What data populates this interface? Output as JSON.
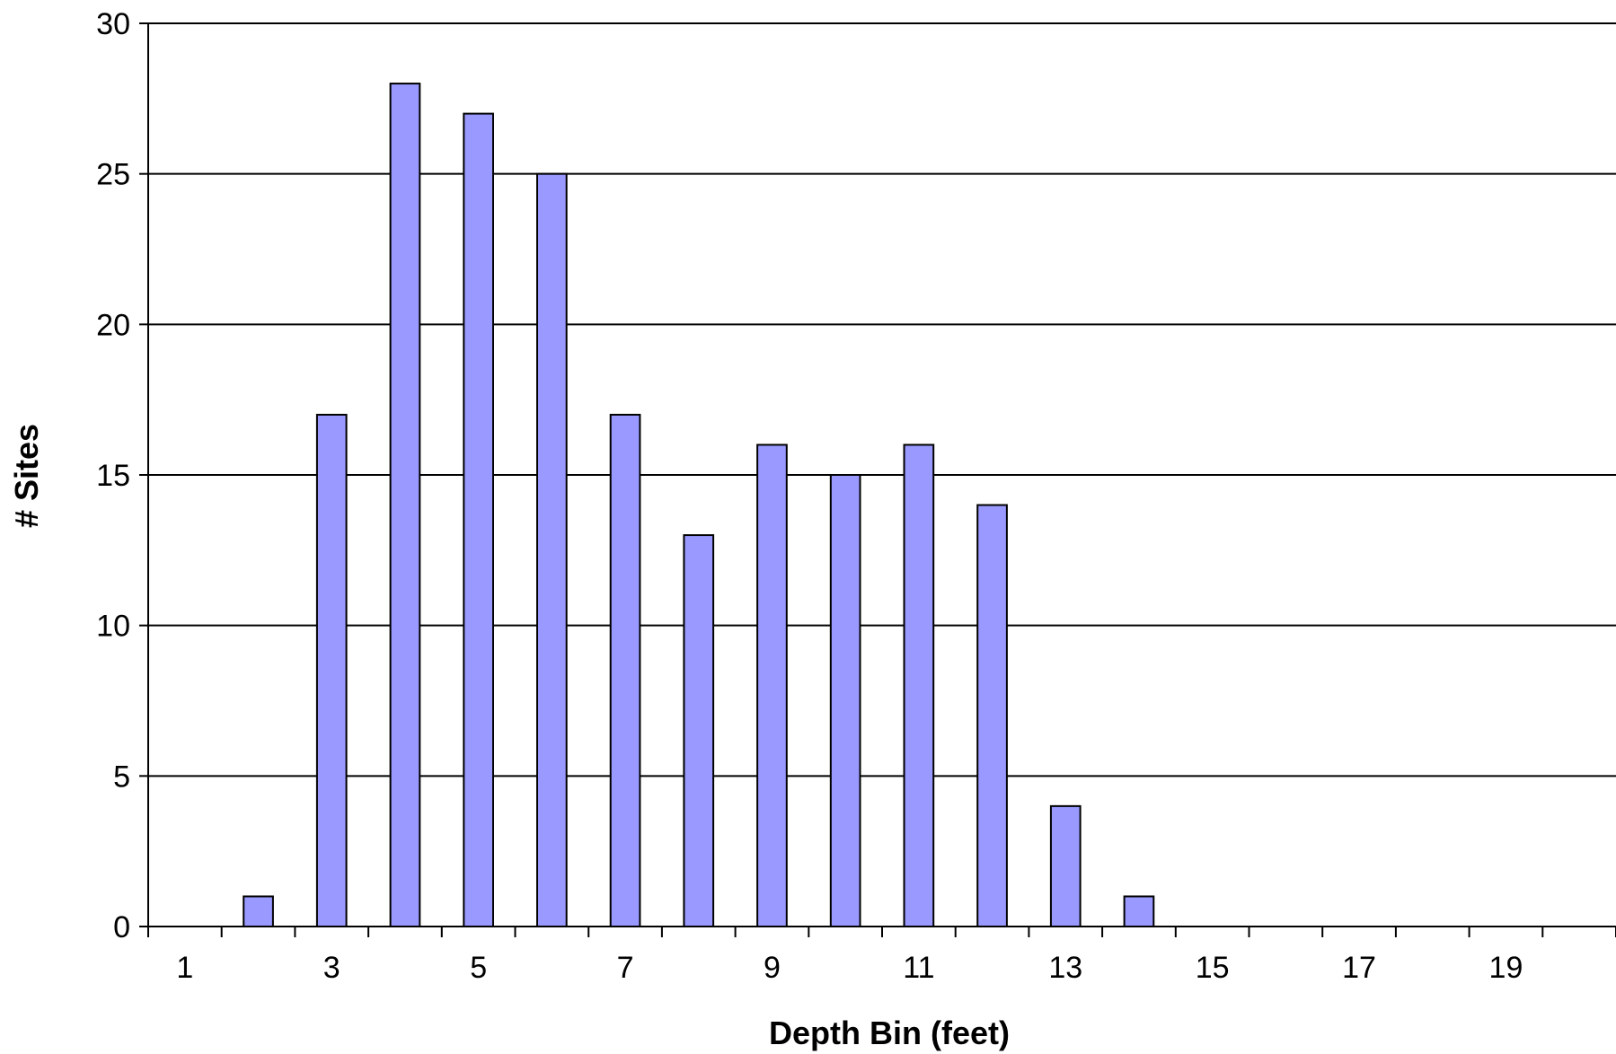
{
  "chart_data": {
    "type": "bar",
    "title": "",
    "xlabel": "Depth Bin (feet)",
    "ylabel": "# Sites",
    "categories": [
      1,
      2,
      3,
      4,
      5,
      6,
      7,
      8,
      9,
      10,
      11,
      12,
      13,
      14,
      15,
      16,
      17,
      18,
      19,
      20
    ],
    "x_tick_labels": [
      "1",
      "3",
      "5",
      "7",
      "9",
      "11",
      "13",
      "15",
      "17",
      "19"
    ],
    "values": [
      0,
      1,
      17,
      28,
      27,
      25,
      17,
      13,
      16,
      15,
      16,
      14,
      4,
      1,
      0,
      0,
      0,
      0,
      0,
      0
    ],
    "ylim": [
      0,
      30
    ],
    "y_ticks": [
      0,
      5,
      10,
      15,
      20,
      25,
      30
    ],
    "grid": "horizontal",
    "bar_color": "#9999ff",
    "bar_edge_color": "#000000"
  }
}
